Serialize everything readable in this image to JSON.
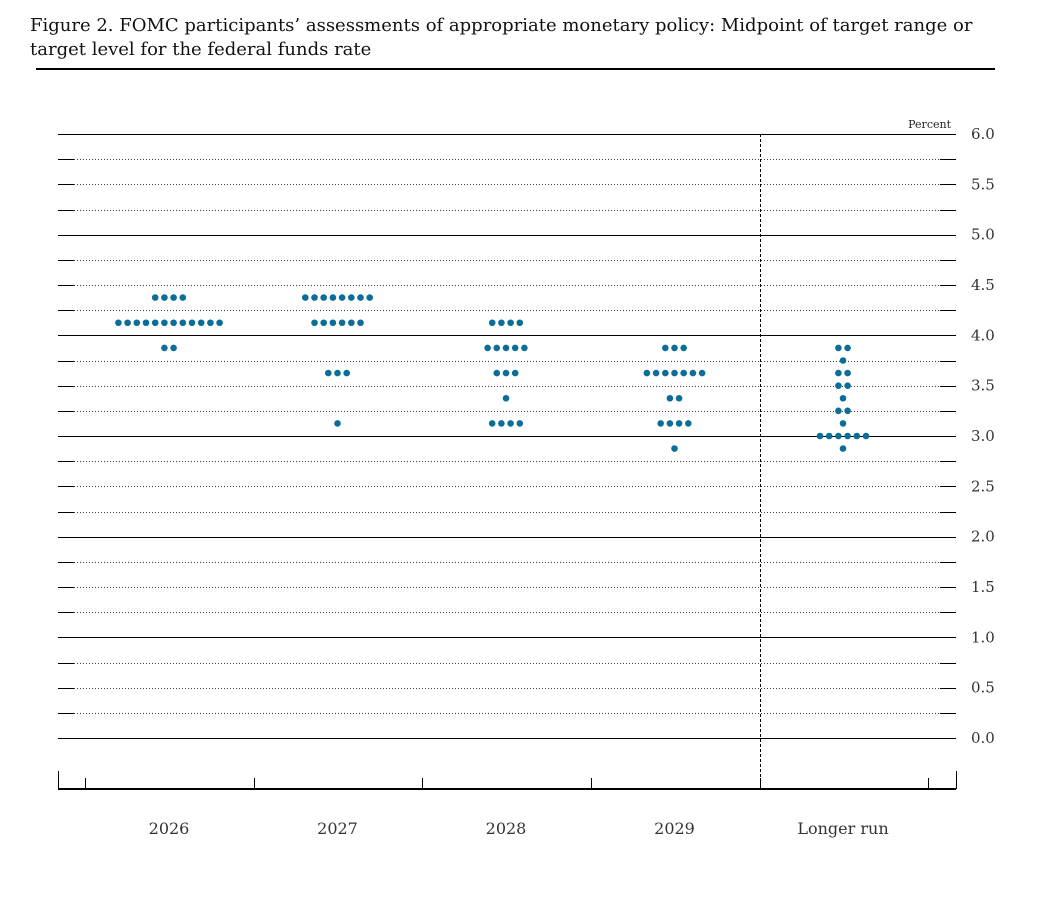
{
  "figure": {
    "title": "Figure 2. FOMC participants’ assessments of appropriate monetary policy: Midpoint of target range or target level for the federal funds rate"
  },
  "chart_data": {
    "type": "scatter",
    "subtype": "dot-plot",
    "unit_label": "Percent",
    "ylim": [
      -0.5,
      6.0
    ],
    "y_ticks": [
      "0.0",
      "0.5",
      "1.0",
      "1.5",
      "2.0",
      "2.5",
      "3.0",
      "3.5",
      "4.0",
      "4.5",
      "5.0",
      "5.5",
      "6.0"
    ],
    "grid": "dotted at 0.25 increments, solid at whole percents",
    "dot_color": "#0b6e99",
    "categories": [
      "2026",
      "2027",
      "2028",
      "2029",
      "Longer run"
    ],
    "separator_before": "Longer run",
    "distribution": [
      {
        "category": "2026",
        "dots": [
          {
            "rate": 4.375,
            "count": 4
          },
          {
            "rate": 4.125,
            "count": 12
          },
          {
            "rate": 3.875,
            "count": 2
          }
        ]
      },
      {
        "category": "2027",
        "dots": [
          {
            "rate": 4.375,
            "count": 8
          },
          {
            "rate": 4.125,
            "count": 6
          },
          {
            "rate": 3.625,
            "count": 3
          },
          {
            "rate": 3.125,
            "count": 1
          }
        ]
      },
      {
        "category": "2028",
        "dots": [
          {
            "rate": 4.125,
            "count": 4
          },
          {
            "rate": 3.875,
            "count": 5
          },
          {
            "rate": 3.625,
            "count": 3
          },
          {
            "rate": 3.375,
            "count": 1
          },
          {
            "rate": 3.125,
            "count": 4
          }
        ]
      },
      {
        "category": "2029",
        "dots": [
          {
            "rate": 3.875,
            "count": 3
          },
          {
            "rate": 3.625,
            "count": 7
          },
          {
            "rate": 3.375,
            "count": 2
          },
          {
            "rate": 3.125,
            "count": 4
          },
          {
            "rate": 2.875,
            "count": 1
          }
        ]
      },
      {
        "category": "Longer run",
        "dots": [
          {
            "rate": 3.875,
            "count": 2
          },
          {
            "rate": 3.75,
            "count": 1
          },
          {
            "rate": 3.625,
            "count": 2
          },
          {
            "rate": 3.5,
            "count": 2
          },
          {
            "rate": 3.375,
            "count": 1
          },
          {
            "rate": 3.25,
            "count": 2
          },
          {
            "rate": 3.125,
            "count": 1
          },
          {
            "rate": 3.0,
            "count": 6
          },
          {
            "rate": 2.875,
            "count": 1
          }
        ]
      }
    ]
  }
}
